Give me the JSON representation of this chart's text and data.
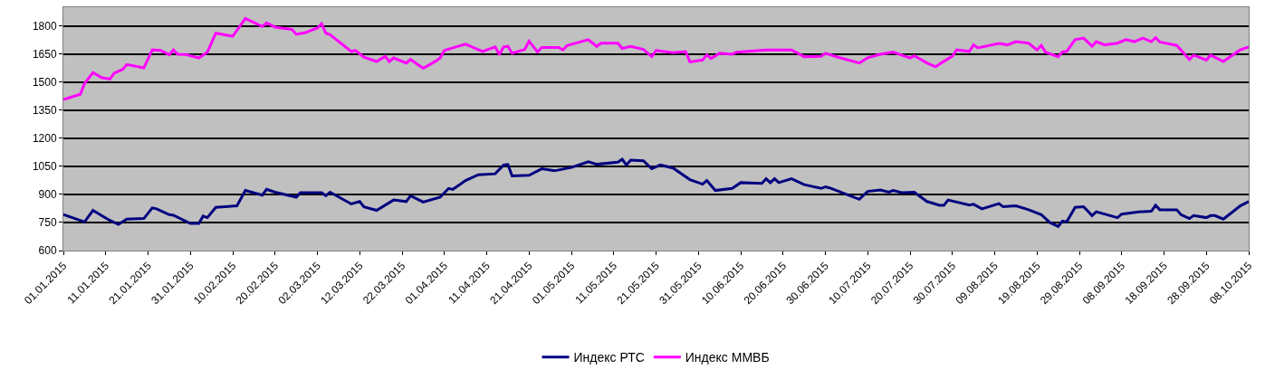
{
  "chart_data": {
    "type": "line",
    "ylim": [
      600,
      1900
    ],
    "yticks": [
      600,
      750,
      900,
      1050,
      1200,
      1350,
      1500,
      1650,
      1800
    ],
    "xlim": [
      "2015-01-01",
      "2015-10-08"
    ],
    "xticks": [
      {
        "value": "2015-01-01",
        "label": "01.01.2015"
      },
      {
        "value": "2015-01-11",
        "label": "11.01.2015"
      },
      {
        "value": "2015-01-21",
        "label": "21.01.2015"
      },
      {
        "value": "2015-01-31",
        "label": "31.01.2015"
      },
      {
        "value": "2015-02-10",
        "label": "10.02.2015"
      },
      {
        "value": "2015-02-20",
        "label": "20.02.2015"
      },
      {
        "value": "2015-03-02",
        "label": "02.03.2015"
      },
      {
        "value": "2015-03-12",
        "label": "12.03.2015"
      },
      {
        "value": "2015-03-22",
        "label": "22.03.2015"
      },
      {
        "value": "2015-04-01",
        "label": "01.04.2015"
      },
      {
        "value": "2015-04-11",
        "label": "11.04.2015"
      },
      {
        "value": "2015-04-21",
        "label": "21.04.2015"
      },
      {
        "value": "2015-05-01",
        "label": "01.05.2015"
      },
      {
        "value": "2015-05-11",
        "label": "11.05.2015"
      },
      {
        "value": "2015-05-21",
        "label": "21.05.2015"
      },
      {
        "value": "2015-05-31",
        "label": "31.05.2015"
      },
      {
        "value": "2015-06-10",
        "label": "10.06.2015"
      },
      {
        "value": "2015-06-20",
        "label": "20.06.2015"
      },
      {
        "value": "2015-06-30",
        "label": "30.06.2015"
      },
      {
        "value": "2015-07-10",
        "label": "10.07.2015"
      },
      {
        "value": "2015-07-20",
        "label": "20.07.2015"
      },
      {
        "value": "2015-07-30",
        "label": "30.07.2015"
      },
      {
        "value": "2015-08-09",
        "label": "09.08.2015"
      },
      {
        "value": "2015-08-19",
        "label": "19.08.2015"
      },
      {
        "value": "2015-08-29",
        "label": "29.08.2015"
      },
      {
        "value": "2015-09-08",
        "label": "08.09.2015"
      },
      {
        "value": "2015-09-18",
        "label": "18.09.2015"
      },
      {
        "value": "2015-09-28",
        "label": "28.09.2015"
      },
      {
        "value": "2015-10-08",
        "label": "08.10.2015"
      }
    ],
    "grid": "y",
    "legend": "bottom",
    "marker": "none",
    "line_style": "solid",
    "series": [
      {
        "name": "Индекс РТС",
        "color": "#000080",
        "x": [
          "2015-01-01",
          "2015-01-06",
          "2015-01-08",
          "2015-01-10",
          "2015-01-12",
          "2015-01-14",
          "2015-01-16",
          "2015-01-20",
          "2015-01-22",
          "2015-01-23",
          "2015-01-26",
          "2015-01-27",
          "2015-01-31",
          "2015-02-02",
          "2015-02-03",
          "2015-02-04",
          "2015-02-06",
          "2015-02-11",
          "2015-02-13",
          "2015-02-17",
          "2015-02-18",
          "2015-02-20",
          "2015-02-25",
          "2015-02-26",
          "2015-03-03",
          "2015-03-04",
          "2015-03-05",
          "2015-03-10",
          "2015-03-12",
          "2015-03-13",
          "2015-03-16",
          "2015-03-20",
          "2015-03-23",
          "2015-03-24",
          "2015-03-27",
          "2015-03-31",
          "2015-04-02",
          "2015-04-03",
          "2015-04-06",
          "2015-04-09",
          "2015-04-13",
          "2015-04-15",
          "2015-04-16",
          "2015-04-17",
          "2015-04-21",
          "2015-04-24",
          "2015-04-27",
          "2015-05-01",
          "2015-05-05",
          "2015-05-07",
          "2015-05-12",
          "2015-05-13",
          "2015-05-14",
          "2015-05-15",
          "2015-05-18",
          "2015-05-20",
          "2015-05-22",
          "2015-05-25",
          "2015-05-29",
          "2015-06-01",
          "2015-06-02",
          "2015-06-04",
          "2015-06-08",
          "2015-06-10",
          "2015-06-15",
          "2015-06-16",
          "2015-06-17",
          "2015-06-18",
          "2015-06-19",
          "2015-06-22",
          "2015-06-25",
          "2015-06-29",
          "2015-06-30",
          "2015-07-01",
          "2015-07-08",
          "2015-07-10",
          "2015-07-13",
          "2015-07-15",
          "2015-07-16",
          "2015-07-18",
          "2015-07-21",
          "2015-07-24",
          "2015-07-27",
          "2015-07-28",
          "2015-07-29",
          "2015-08-03",
          "2015-08-04",
          "2015-08-06",
          "2015-08-10",
          "2015-08-11",
          "2015-08-14",
          "2015-08-17",
          "2015-08-20",
          "2015-08-22",
          "2015-08-24",
          "2015-08-25",
          "2015-08-26",
          "2015-08-28",
          "2015-08-30",
          "2015-09-01",
          "2015-09-02",
          "2015-09-07",
          "2015-09-08",
          "2015-09-12",
          "2015-09-15",
          "2015-09-16",
          "2015-09-17",
          "2015-09-21",
          "2015-09-22",
          "2015-09-24",
          "2015-09-25",
          "2015-09-28",
          "2015-09-29",
          "2015-09-30",
          "2015-10-02",
          "2015-10-04",
          "2015-10-06",
          "2015-10-08"
        ],
        "values": [
          792,
          753,
          815,
          787,
          761,
          740,
          768,
          771,
          828,
          823,
          792,
          789,
          745,
          745,
          784,
          776,
          831,
          839,
          921,
          896,
          927,
          912,
          885,
          909,
          909,
          893,
          912,
          849,
          862,
          834,
          815,
          870,
          862,
          893,
          859,
          885,
          932,
          927,
          974,
          1005,
          1010,
          1057,
          1060,
          999,
          1002,
          1037,
          1026,
          1044,
          1075,
          1061,
          1072,
          1088,
          1057,
          1083,
          1080,
          1037,
          1057,
          1041,
          979,
          955,
          974,
          921,
          932,
          963,
          959,
          984,
          963,
          984,
          963,
          984,
          952,
          932,
          940,
          935,
          874,
          916,
          924,
          912,
          921,
          909,
          912,
          862,
          842,
          842,
          870,
          843,
          847,
          823,
          851,
          834,
          839,
          818,
          792,
          750,
          729,
          758,
          753,
          831,
          834,
          787,
          807,
          776,
          795,
          807,
          810,
          842,
          818,
          818,
          792,
          771,
          787,
          776,
          787,
          787,
          768,
          803,
          839,
          862
        ]
      },
      {
        "name": "Индекс ММВБ",
        "color": "#ff00ff",
        "x": [
          "2015-01-01",
          "2015-01-05",
          "2015-01-06",
          "2015-01-08",
          "2015-01-10",
          "2015-01-12",
          "2015-01-13",
          "2015-01-15",
          "2015-01-16",
          "2015-01-20",
          "2015-01-22",
          "2015-01-24",
          "2015-01-26",
          "2015-01-27",
          "2015-01-28",
          "2015-01-30",
          "2015-02-02",
          "2015-02-04",
          "2015-02-06",
          "2015-02-10",
          "2015-02-13",
          "2015-02-17",
          "2015-02-18",
          "2015-02-20",
          "2015-02-24",
          "2015-02-25",
          "2015-02-27",
          "2015-03-02",
          "2015-03-03",
          "2015-03-04",
          "2015-03-05",
          "2015-03-10",
          "2015-03-11",
          "2015-03-13",
          "2015-03-16",
          "2015-03-18",
          "2015-03-19",
          "2015-03-20",
          "2015-03-23",
          "2015-03-24",
          "2015-03-27",
          "2015-03-30",
          "2015-03-31",
          "2015-04-01",
          "2015-04-03",
          "2015-04-06",
          "2015-04-10",
          "2015-04-13",
          "2015-04-14",
          "2015-04-15",
          "2015-04-16",
          "2015-04-17",
          "2015-04-20",
          "2015-04-21",
          "2015-04-23",
          "2015-04-24",
          "2015-04-28",
          "2015-04-29",
          "2015-04-30",
          "2015-05-05",
          "2015-05-07",
          "2015-05-08",
          "2015-05-12",
          "2015-05-13",
          "2015-05-15",
          "2015-05-18",
          "2015-05-20",
          "2015-05-21",
          "2015-05-25",
          "2015-05-28",
          "2015-05-29",
          "2015-06-01",
          "2015-06-02",
          "2015-06-03",
          "2015-06-05",
          "2015-06-08",
          "2015-06-09",
          "2015-06-16",
          "2015-06-22",
          "2015-06-25",
          "2015-06-29",
          "2015-06-30",
          "2015-07-03",
          "2015-07-08",
          "2015-07-10",
          "2015-07-13",
          "2015-07-16",
          "2015-07-20",
          "2015-07-21",
          "2015-07-24",
          "2015-07-26",
          "2015-07-29",
          "2015-07-30",
          "2015-07-31",
          "2015-08-03",
          "2015-08-04",
          "2015-08-05",
          "2015-08-10",
          "2015-08-12",
          "2015-08-14",
          "2015-08-17",
          "2015-08-19",
          "2015-08-20",
          "2015-08-21",
          "2015-08-24",
          "2015-08-25",
          "2015-08-26",
          "2015-08-28",
          "2015-08-30",
          "2015-09-01",
          "2015-09-02",
          "2015-09-04",
          "2015-09-07",
          "2015-09-09",
          "2015-09-11",
          "2015-09-13",
          "2015-09-15",
          "2015-09-16",
          "2015-09-17",
          "2015-09-21",
          "2015-09-24",
          "2015-09-25",
          "2015-09-28",
          "2015-09-29",
          "2015-10-02",
          "2015-10-06",
          "2015-10-08"
        ],
        "values": [
          1407,
          1435,
          1493,
          1551,
          1524,
          1516,
          1548,
          1568,
          1594,
          1576,
          1672,
          1669,
          1646,
          1672,
          1649,
          1647,
          1629,
          1660,
          1761,
          1745,
          1840,
          1797,
          1816,
          1794,
          1781,
          1755,
          1763,
          1789,
          1812,
          1761,
          1753,
          1664,
          1669,
          1633,
          1610,
          1638,
          1610,
          1629,
          1602,
          1621,
          1574,
          1613,
          1629,
          1669,
          1683,
          1703,
          1664,
          1688,
          1646,
          1688,
          1692,
          1654,
          1675,
          1719,
          1661,
          1685,
          1685,
          1672,
          1696,
          1727,
          1691,
          1708,
          1708,
          1680,
          1691,
          1675,
          1636,
          1669,
          1657,
          1663,
          1608,
          1618,
          1646,
          1626,
          1654,
          1649,
          1660,
          1672,
          1672,
          1636,
          1638,
          1654,
          1633,
          1602,
          1630,
          1649,
          1660,
          1629,
          1641,
          1602,
          1582,
          1625,
          1638,
          1672,
          1664,
          1699,
          1683,
          1707,
          1699,
          1716,
          1708,
          1672,
          1696,
          1660,
          1636,
          1661,
          1664,
          1727,
          1735,
          1692,
          1716,
          1699,
          1708,
          1727,
          1716,
          1735,
          1716,
          1738,
          1714,
          1696,
          1621,
          1644,
          1618,
          1644,
          1610,
          1672,
          1688
        ]
      }
    ]
  }
}
